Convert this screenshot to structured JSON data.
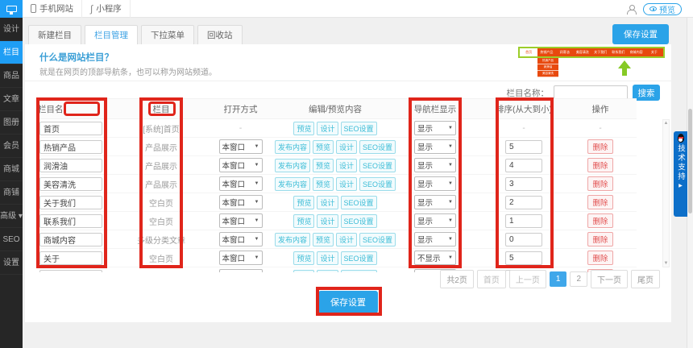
{
  "topbar": {
    "device_tabs": [
      "手机网站",
      "小程序"
    ],
    "preview_button": "预览"
  },
  "sidebar": {
    "items": [
      {
        "label": "设计",
        "active": false
      },
      {
        "label": "栏目",
        "active": true
      },
      {
        "label": "商品",
        "active": false
      },
      {
        "label": "文章",
        "active": false
      },
      {
        "label": "图册",
        "active": false
      },
      {
        "label": "会员",
        "active": false
      },
      {
        "label": "商城",
        "active": false
      },
      {
        "label": "商铺",
        "active": false
      },
      {
        "label": "高级 ▾",
        "active": false
      },
      {
        "label": "SEO",
        "active": false
      },
      {
        "label": "设置",
        "active": false
      }
    ]
  },
  "tabs": {
    "items": [
      {
        "label": "新建栏目",
        "active": false
      },
      {
        "label": "栏目管理",
        "active": true
      },
      {
        "label": "下拉菜单",
        "active": false
      },
      {
        "label": "回收站",
        "active": false
      }
    ],
    "save_button": "保存设置"
  },
  "help": {
    "title": "什么是网站栏目？",
    "body": "就是在网页的顶部导航条，也可以称为网站频道。"
  },
  "preview_thumb": {
    "nav_items": [
      "首页",
      "热销产品",
      "润滑油",
      "美容清洗",
      "关于我们",
      "联系我们",
      "商城内容",
      "关于"
    ],
    "dropdown_items": [
      "热销产品",
      "润滑油",
      "美容清洗"
    ]
  },
  "search": {
    "label": "栏目名称：",
    "button": "搜索"
  },
  "table": {
    "headers": [
      "栏目名",
      "栏目",
      "打开方式",
      "编辑/预览内容",
      "导航栏显示",
      "排序(从大到小)",
      "操作"
    ],
    "rows": [
      {
        "name": "首页",
        "type": "[系统]首页",
        "open": "-",
        "actions": [
          "预览",
          "设计",
          "SEO设置"
        ],
        "nav": "显示",
        "sort": "-",
        "op": "-"
      },
      {
        "name": "热销产品",
        "type": "产品展示",
        "open": "本窗口",
        "actions": [
          "发布内容",
          "预览",
          "设计",
          "SEO设置"
        ],
        "nav": "显示",
        "sort": "5",
        "op": "删除"
      },
      {
        "name": "润滑油",
        "type": "产品展示",
        "open": "本窗口",
        "actions": [
          "发布内容",
          "预览",
          "设计",
          "SEO设置"
        ],
        "nav": "显示",
        "sort": "4",
        "op": "删除"
      },
      {
        "name": "美容清洗",
        "type": "产品展示",
        "open": "本窗口",
        "actions": [
          "发布内容",
          "预览",
          "设计",
          "SEO设置"
        ],
        "nav": "显示",
        "sort": "3",
        "op": "删除"
      },
      {
        "name": "关于我们",
        "type": "空白页",
        "open": "本窗口",
        "actions": [
          "预览",
          "设计",
          "SEO设置"
        ],
        "nav": "显示",
        "sort": "2",
        "op": "删除"
      },
      {
        "name": "联系我们",
        "type": "空白页",
        "open": "本窗口",
        "actions": [
          "预览",
          "设计",
          "SEO设置"
        ],
        "nav": "显示",
        "sort": "1",
        "op": "删除"
      },
      {
        "name": "商城内容",
        "type": "多级分类文章",
        "open": "本窗口",
        "actions": [
          "发布内容",
          "预览",
          "设计",
          "SEO设置"
        ],
        "nav": "显示",
        "sort": "0",
        "op": "删除"
      },
      {
        "name": "关于",
        "type": "空白页",
        "open": "本窗口",
        "actions": [
          "预览",
          "设计",
          "SEO设置"
        ],
        "nav": "不显示",
        "sort": "5",
        "op": "删除"
      },
      {
        "name": "",
        "type": "",
        "open": "本窗口",
        "actions": [
          "预览",
          "设计",
          "SEO设置"
        ],
        "nav": "显示",
        "sort": "",
        "op": "删除"
      }
    ]
  },
  "pagination": {
    "total": "共2页",
    "items": [
      {
        "label": "首页",
        "active": false,
        "muted": true
      },
      {
        "label": "上一页",
        "active": false,
        "muted": true
      },
      {
        "label": "1",
        "active": true,
        "muted": false
      },
      {
        "label": "2",
        "active": false,
        "muted": false
      },
      {
        "label": "下一页",
        "active": false,
        "muted": false
      },
      {
        "label": "尾页",
        "active": false,
        "muted": false
      }
    ]
  },
  "footer": {
    "save_button": "保存设置"
  },
  "support": {
    "label": "技术支持"
  },
  "icons": {
    "caret_down": "▼",
    "expand_arrow": "▶",
    "scroll_up": "▲",
    "scroll_down": "▼",
    "miniprogram": "∫"
  },
  "colors": {
    "accent_blue": "#2ba3e8",
    "sidebar_active_blue": "#1f9ef5",
    "annotation_red": "#e0251b",
    "preview_nav_orange": "#e8490e",
    "preview_border_green": "#9ccd2a",
    "arrow_green": "#86ca26",
    "action_cyan": "#3bbcd6",
    "delete_red": "#e25050",
    "support_blue": "#0d6fc9"
  }
}
